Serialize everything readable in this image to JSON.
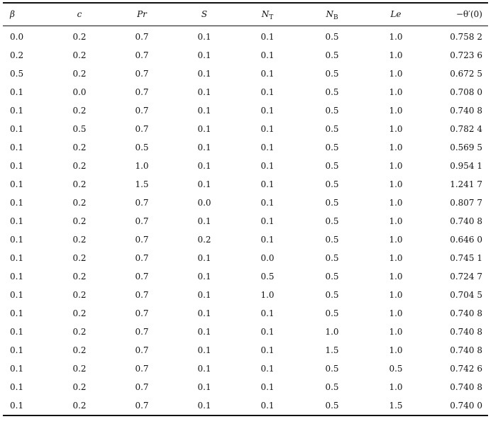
{
  "table": {
    "header": [
      "β",
      "c",
      "Pr",
      "S",
      {
        "base": "N",
        "sub": "T"
      },
      {
        "base": "N",
        "sub": "B"
      },
      "Le",
      "−θ′(0)"
    ],
    "rows": [
      [
        "0.0",
        "0.2",
        "0.7",
        "0.1",
        "0.1",
        "0.5",
        "1.0",
        "0.758 2"
      ],
      [
        "0.2",
        "0.2",
        "0.7",
        "0.1",
        "0.1",
        "0.5",
        "1.0",
        "0.723 6"
      ],
      [
        "0.5",
        "0.2",
        "0.7",
        "0.1",
        "0.1",
        "0.5",
        "1.0",
        "0.672 5"
      ],
      [
        "0.1",
        "0.0",
        "0.7",
        "0.1",
        "0.1",
        "0.5",
        "1.0",
        "0.708 0"
      ],
      [
        "0.1",
        "0.2",
        "0.7",
        "0.1",
        "0.1",
        "0.5",
        "1.0",
        "0.740 8"
      ],
      [
        "0.1",
        "0.5",
        "0.7",
        "0.1",
        "0.1",
        "0.5",
        "1.0",
        "0.782 4"
      ],
      [
        "0.1",
        "0.2",
        "0.5",
        "0.1",
        "0.1",
        "0.5",
        "1.0",
        "0.569 5"
      ],
      [
        "0.1",
        "0.2",
        "1.0",
        "0.1",
        "0.1",
        "0.5",
        "1.0",
        "0.954 1"
      ],
      [
        "0.1",
        "0.2",
        "1.5",
        "0.1",
        "0.1",
        "0.5",
        "1.0",
        "1.241 7"
      ],
      [
        "0.1",
        "0.2",
        "0.7",
        "0.0",
        "0.1",
        "0.5",
        "1.0",
        "0.807 7"
      ],
      [
        "0.1",
        "0.2",
        "0.7",
        "0.1",
        "0.1",
        "0.5",
        "1.0",
        "0.740 8"
      ],
      [
        "0.1",
        "0.2",
        "0.7",
        "0.2",
        "0.1",
        "0.5",
        "1.0",
        "0.646 0"
      ],
      [
        "0.1",
        "0.2",
        "0.7",
        "0.1",
        "0.0",
        "0.5",
        "1.0",
        "0.745 1"
      ],
      [
        "0.1",
        "0.2",
        "0.7",
        "0.1",
        "0.5",
        "0.5",
        "1.0",
        "0.724 7"
      ],
      [
        "0.1",
        "0.2",
        "0.7",
        "0.1",
        "1.0",
        "0.5",
        "1.0",
        "0.704 5"
      ],
      [
        "0.1",
        "0.2",
        "0.7",
        "0.1",
        "0.1",
        "0.5",
        "1.0",
        "0.740 8"
      ],
      [
        "0.1",
        "0.2",
        "0.7",
        "0.1",
        "0.1",
        "1.0",
        "1.0",
        "0.740 8"
      ],
      [
        "0.1",
        "0.2",
        "0.7",
        "0.1",
        "0.1",
        "1.5",
        "1.0",
        "0.740 8"
      ],
      [
        "0.1",
        "0.2",
        "0.7",
        "0.1",
        "0.1",
        "0.5",
        "0.5",
        "0.742 6"
      ],
      [
        "0.1",
        "0.2",
        "0.7",
        "0.1",
        "0.1",
        "0.5",
        "1.0",
        "0.740 8"
      ],
      [
        "0.1",
        "0.2",
        "0.7",
        "0.1",
        "0.1",
        "0.5",
        "1.5",
        "0.740 0"
      ]
    ]
  }
}
